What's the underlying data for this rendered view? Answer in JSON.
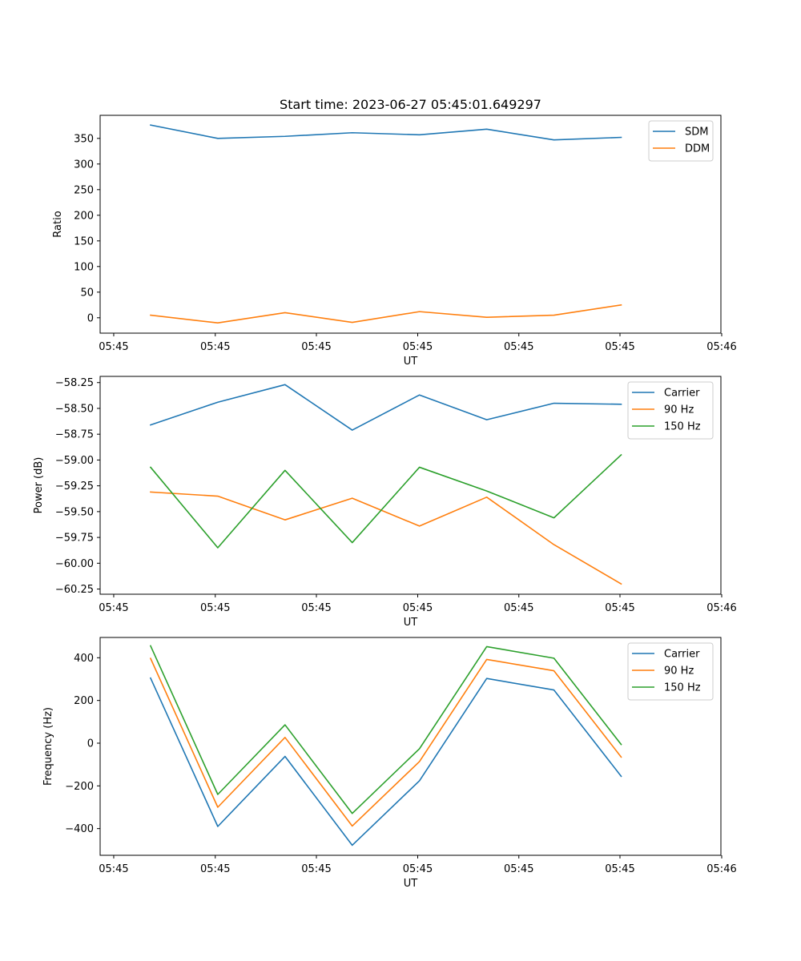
{
  "chart_data": [
    {
      "type": "line",
      "title": "Start time: 2023-06-27 05:45:01.649297",
      "xlabel": "UT",
      "ylabel": "Ratio",
      "x": [
        "05:45:01.9",
        "05:45:02.2",
        "05:45:02.5",
        "05:45:02.8",
        "05:45:03.1",
        "05:45:03.4",
        "05:45:03.7",
        "05:45:04.0"
      ],
      "xticks": [
        "05:45",
        "05:45",
        "05:45",
        "05:45",
        "05:45",
        "05:45",
        "05:46"
      ],
      "xlim": [
        "05:45:01.675",
        "05:45:04.445"
      ],
      "ylim": [
        -30,
        395
      ],
      "yticks": [
        0,
        50,
        100,
        150,
        200,
        250,
        300,
        350
      ],
      "legend": "top-right",
      "series": [
        {
          "name": "SDM",
          "color": "#1f77b4",
          "values": [
            376,
            350,
            354,
            361,
            357,
            368,
            347,
            352
          ]
        },
        {
          "name": "DDM",
          "color": "#ff7f0e",
          "values": [
            5,
            -10,
            10,
            -9,
            12,
            1,
            5,
            25
          ]
        }
      ]
    },
    {
      "type": "line",
      "xlabel": "UT",
      "ylabel": "Power (dB)",
      "x": [
        "05:45:01.9",
        "05:45:02.2",
        "05:45:02.5",
        "05:45:02.8",
        "05:45:03.1",
        "05:45:03.4",
        "05:45:03.7",
        "05:45:04.0"
      ],
      "xticks": [
        "05:45",
        "05:45",
        "05:45",
        "05:45",
        "05:45",
        "05:45",
        "05:46"
      ],
      "xlim": [
        "05:45:01.675",
        "05:45:04.445"
      ],
      "ylim": [
        -60.3,
        -58.19
      ],
      "yticks": [
        -58.25,
        -58.5,
        -58.75,
        -59.0,
        -59.25,
        -59.5,
        -59.75,
        -60.0,
        -60.25
      ],
      "yticklabels": [
        "−58.25",
        "−58.50",
        "−58.75",
        "−59.00",
        "−59.25",
        "−59.50",
        "−59.75",
        "−60.00",
        "−60.25"
      ],
      "legend": "top-right",
      "series": [
        {
          "name": "Carrier",
          "color": "#1f77b4",
          "values": [
            -58.66,
            -58.44,
            -58.27,
            -58.71,
            -58.37,
            -58.61,
            -58.45,
            -58.46
          ]
        },
        {
          "name": "90 Hz",
          "color": "#ff7f0e",
          "values": [
            -59.31,
            -59.35,
            -59.58,
            -59.37,
            -59.64,
            -59.36,
            -59.82,
            -60.2
          ]
        },
        {
          "name": "150 Hz",
          "color": "#2ca02c",
          "values": [
            -59.07,
            -59.85,
            -59.1,
            -59.8,
            -59.07,
            -59.3,
            -59.56,
            -58.95
          ]
        }
      ]
    },
    {
      "type": "line",
      "xlabel": "UT",
      "ylabel": "Frequency (Hz)",
      "x": [
        "05:45:01.9",
        "05:45:02.2",
        "05:45:02.5",
        "05:45:02.8",
        "05:45:03.1",
        "05:45:03.4",
        "05:45:03.7",
        "05:45:04.0"
      ],
      "xticks": [
        "05:45",
        "05:45",
        "05:45",
        "05:45",
        "05:45",
        "05:45",
        "05:46"
      ],
      "xlim": [
        "05:45:01.675",
        "05:45:04.445"
      ],
      "ylim": [
        -525,
        495
      ],
      "yticks": [
        -400,
        -200,
        0,
        200,
        400
      ],
      "yticklabels": [
        "−400",
        "−200",
        "0",
        "200",
        "400"
      ],
      "legend": "top-right",
      "series": [
        {
          "name": "Carrier",
          "color": "#1f77b4",
          "values": [
            305,
            -390,
            -62,
            -478,
            -176,
            303,
            249,
            -155
          ]
        },
        {
          "name": "90 Hz",
          "color": "#ff7f0e",
          "values": [
            397,
            -300,
            27,
            -388,
            -86,
            392,
            339,
            -65
          ]
        },
        {
          "name": "150 Hz",
          "color": "#2ca02c",
          "values": [
            456,
            -240,
            86,
            -329,
            -26,
            452,
            398,
            -6
          ]
        }
      ]
    }
  ]
}
